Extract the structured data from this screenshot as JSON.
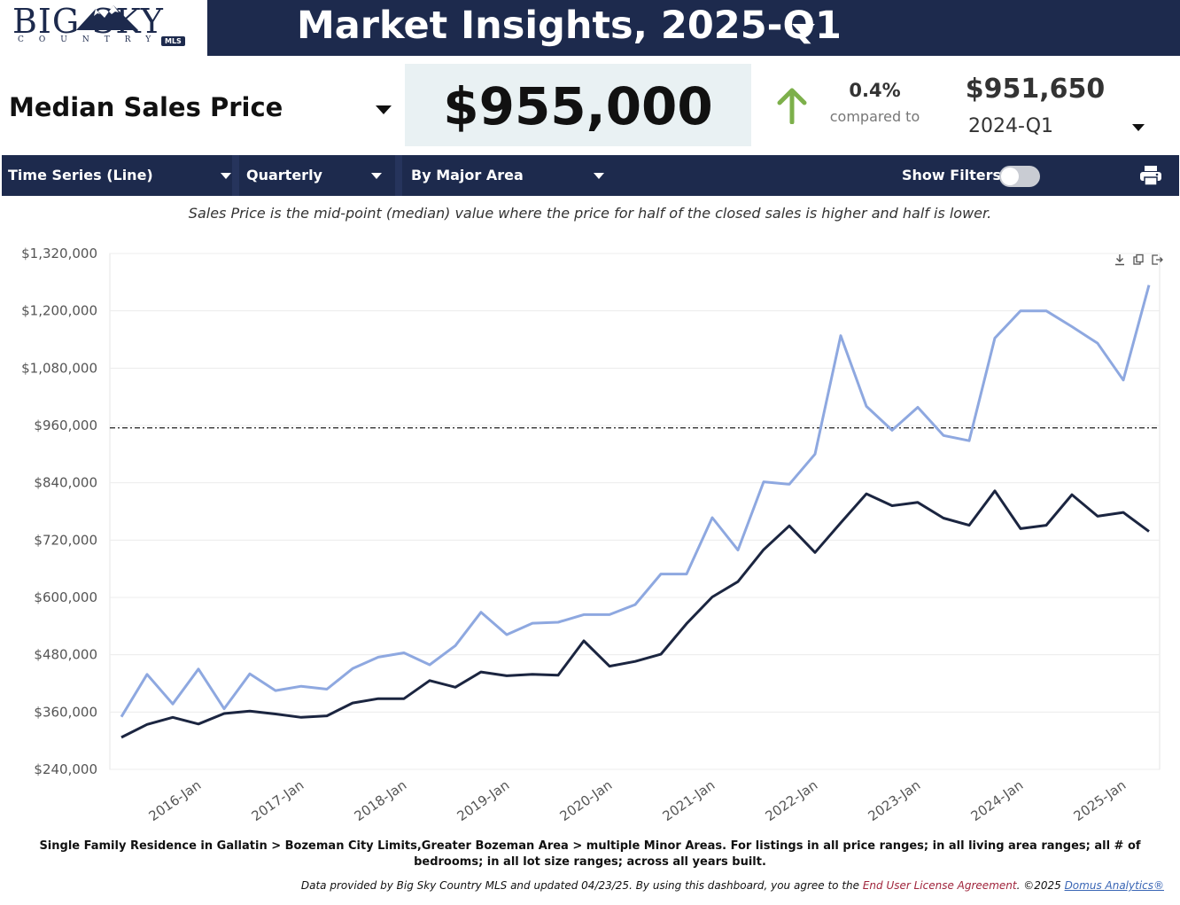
{
  "header": {
    "logo_big": "BIG SKY",
    "logo_country": "COUNTRY",
    "logo_mls": "MLS",
    "title": "Market Insights, 2025-Q1"
  },
  "metric": {
    "label": "Median Sales Price",
    "value": "$955,000",
    "change_pct": "0.4%",
    "compared_label": "compared to",
    "compare_value": "$951,650",
    "compare_period": "2024-Q1"
  },
  "toolbar": {
    "chart_type": "Time Series (Line)",
    "interval": "Quarterly",
    "grouping": "By Major Area",
    "show_filters_label": "Show Filters:"
  },
  "description": "Sales Price is the mid-point (median) value where the price for half of the closed sales is higher and half is lower.",
  "footnote": "Single Family Residence in Gallatin > Bozeman City Limits,Greater Bozeman Area > multiple Minor Areas. For listings in all price ranges; in all living area ranges; all # of bedrooms; in all lot size ranges; across all years built.",
  "credits": {
    "text": "Data provided by Big Sky Country MLS and updated 04/23/25.  By using this dashboard, you agree to the ",
    "eula_link": "End User License Agreement",
    "copyright": ".  ©2025 ",
    "domus_link": "Domus Analytics®"
  },
  "colors": {
    "navy": "#1d2a4d",
    "series_light": "#8ea8e0",
    "series_dark": "#1b2540",
    "up_arrow": "#7db04b"
  },
  "chart_data": {
    "type": "line",
    "y_ticks": [
      "$240,000",
      "$360,000",
      "$480,000",
      "$600,000",
      "$720,000",
      "$840,000",
      "$960,000",
      "$1,080,000",
      "$1,200,000",
      "$1,320,000"
    ],
    "x_tick_labels": [
      "2016-Jan",
      "2017-Jan",
      "2018-Jan",
      "2019-Jan",
      "2020-Jan",
      "2021-Jan",
      "2022-Jan",
      "2023-Jan",
      "2024-Jan",
      "2025-Jan"
    ],
    "ylim": [
      240000,
      1320000
    ],
    "reference_line": 955000,
    "x": [
      "2015-Q2",
      "2015-Q3",
      "2015-Q4",
      "2016-Q1",
      "2016-Q2",
      "2016-Q3",
      "2016-Q4",
      "2017-Q1",
      "2017-Q2",
      "2017-Q3",
      "2017-Q4",
      "2018-Q1",
      "2018-Q2",
      "2018-Q3",
      "2018-Q4",
      "2019-Q1",
      "2019-Q2",
      "2019-Q3",
      "2019-Q4",
      "2020-Q1",
      "2020-Q2",
      "2020-Q3",
      "2020-Q4",
      "2021-Q1",
      "2021-Q2",
      "2021-Q3",
      "2021-Q4",
      "2022-Q1",
      "2022-Q2",
      "2022-Q3",
      "2022-Q4",
      "2023-Q1",
      "2023-Q2",
      "2023-Q3",
      "2023-Q4",
      "2024-Q1",
      "2024-Q2",
      "2024-Q3",
      "2024-Q4",
      "2025-Q1",
      "2025-Q2"
    ],
    "series": [
      {
        "color": "#8ea8e0",
        "values": [
          350000,
          439000,
          377000,
          450000,
          367000,
          440000,
          405000,
          414000,
          408000,
          451000,
          475000,
          484000,
          459000,
          499000,
          569000,
          522000,
          546000,
          548000,
          564000,
          564000,
          585000,
          649000,
          649000,
          767000,
          699000,
          842000,
          837000,
          900000,
          1148000,
          1000000,
          950000,
          998000,
          939000,
          928000,
          1143000,
          1200000,
          1200000,
          1167000,
          1132000,
          1055000,
          1254000
        ]
      },
      {
        "color": "#1b2540",
        "values": [
          307000,
          334000,
          349000,
          335000,
          357000,
          362000,
          356000,
          349000,
          352000,
          379000,
          388000,
          388000,
          426000,
          412000,
          444000,
          436000,
          439000,
          437000,
          509000,
          456000,
          466000,
          481000,
          545000,
          601000,
          633000,
          700000,
          750000,
          694000,
          756000,
          817000,
          792000,
          799000,
          766000,
          751000,
          823000,
          744000,
          751000,
          815000,
          770000,
          778000,
          738000
        ]
      }
    ]
  }
}
